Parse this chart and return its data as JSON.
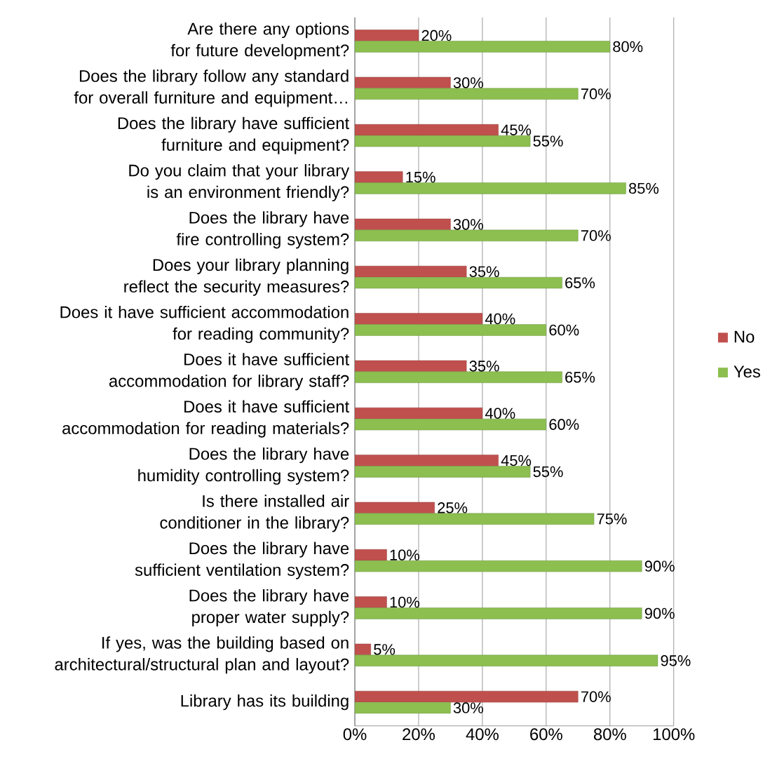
{
  "chart_data": {
    "type": "bar",
    "orientation": "horizontal",
    "categories": [
      "Are there any options for future development?",
      "Does the library follow any standard for overall furniture and equipment…",
      "Does the library have sufficient furniture and equipment?",
      "Do you claim that your library is an environment friendly?",
      "Does the library have fire controlling system?",
      "Does your library planning reflect the security measures?",
      "Does it have sufficient accommodation for reading community?",
      "Does it have sufficient accommodation for library staff?",
      "Does it have sufficient accommodation for reading materials?",
      "Does the library have humidity controlling system?",
      "Is there installed air conditioner in the library?",
      "Does the library have sufficient ventilation system?",
      "Does the library have proper water supply?",
      "If yes, was the building based on architectural/structural plan and layout?",
      "Library has its building"
    ],
    "series": [
      {
        "name": "No",
        "color": "#c0504d",
        "values": [
          20,
          30,
          45,
          15,
          30,
          35,
          40,
          35,
          40,
          45,
          25,
          10,
          10,
          5,
          70
        ],
        "value_labels": [
          "20%",
          "30%",
          "45%",
          "15%",
          "30%",
          "35%",
          "40%",
          "35%",
          "40%",
          "45%",
          "25%",
          "10%",
          "10%",
          "5%",
          "70%"
        ]
      },
      {
        "name": "Yes",
        "color": "#8cbf4f",
        "values": [
          80,
          70,
          55,
          85,
          70,
          65,
          60,
          65,
          60,
          55,
          75,
          90,
          90,
          95,
          30
        ],
        "value_labels": [
          "80%",
          "70%",
          "55%",
          "85%",
          "70%",
          "65%",
          "60%",
          "65%",
          "60%",
          "55%",
          "75%",
          "90%",
          "90%",
          "95%",
          "30%"
        ]
      }
    ],
    "xlim": [
      0,
      100
    ],
    "xticks": [
      {
        "value": 0,
        "label": "0%"
      },
      {
        "value": 20,
        "label": "20%"
      },
      {
        "value": 40,
        "label": "40%"
      },
      {
        "value": 60,
        "label": "60%"
      },
      {
        "value": 80,
        "label": "80%"
      },
      {
        "value": 100,
        "label": "100%"
      }
    ],
    "grid": "x",
    "legend": "right"
  }
}
